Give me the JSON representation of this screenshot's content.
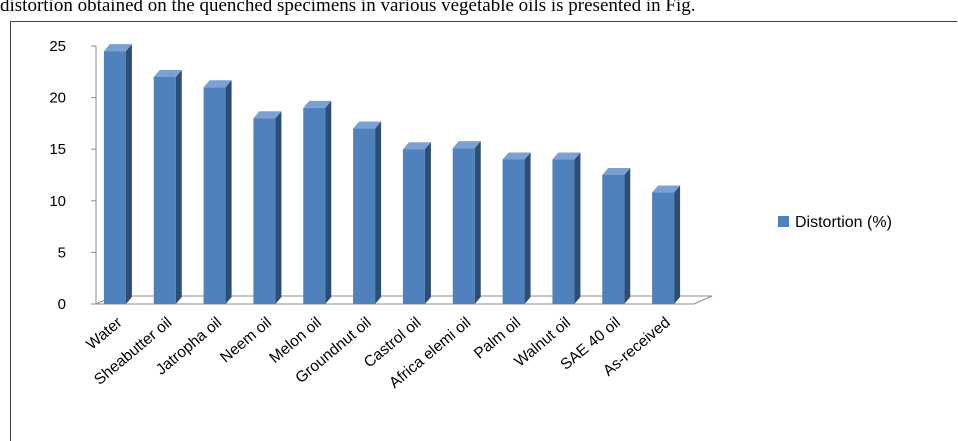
{
  "caption": "distortion obtained on the quenched specimens in various vegetable oils is presented in Fig.",
  "colors": {
    "bar_front": "#4f81bd",
    "bar_side": "#2c4d75",
    "bar_top": "#7aa1d2",
    "axis": "#8c8c8c"
  },
  "chart_data": {
    "type": "bar",
    "title": "",
    "xlabel": "",
    "ylabel": "",
    "ylim": [
      0,
      25
    ],
    "yticks": [
      0,
      5,
      10,
      15,
      20,
      25
    ],
    "grid": false,
    "legend_position": "right",
    "categories": [
      "Water",
      "Sheabutter oil",
      "Jatropha oil",
      "Neem oil",
      "Melon oil",
      "Groundnut oil",
      "Castrol oil",
      "Africa elemi oil",
      "Palm oil",
      "Walnut oil",
      "SAE 40 oil",
      "As-received"
    ],
    "series": [
      {
        "name": "Distortion (%)",
        "values": [
          24.5,
          22,
          21,
          18,
          19,
          17,
          15,
          15.1,
          14,
          14,
          12.5,
          10.8
        ]
      }
    ]
  }
}
